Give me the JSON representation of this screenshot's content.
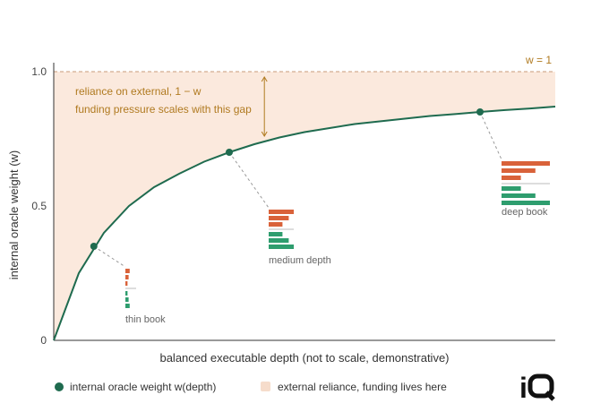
{
  "chart_data": {
    "type": "area",
    "xlabel": "balanced executable depth (not to scale, demonstrative)",
    "ylabel": "internal oracle weight (w)",
    "ylim": [
      0,
      1
    ],
    "xlim": [
      0,
      1
    ],
    "yticks": [
      {
        "value": 0,
        "label": "0"
      },
      {
        "value": 0.5,
        "label": "0.5"
      },
      {
        "value": 1,
        "label": "1.0"
      }
    ],
    "series": [
      {
        "name": "internal oracle weight w(depth)",
        "color": "#1f6b4f",
        "x": [
          0,
          0.05,
          0.1,
          0.15,
          0.2,
          0.25,
          0.3,
          0.35,
          0.4,
          0.45,
          0.5,
          0.55,
          0.6,
          0.65,
          0.7,
          0.75,
          0.8,
          0.85,
          0.9,
          0.95,
          1.0
        ],
        "y": [
          0,
          0.25,
          0.4,
          0.5,
          0.57,
          0.62,
          0.665,
          0.7,
          0.73,
          0.755,
          0.775,
          0.79,
          0.805,
          0.815,
          0.825,
          0.835,
          0.842,
          0.85,
          0.857,
          0.863,
          0.87
        ]
      }
    ],
    "reference_line": {
      "y": 1,
      "label": "w = 1",
      "style": "dashed",
      "color": "#c89a7a"
    },
    "shaded_region": {
      "name": "external reliance, funding lives here",
      "from": "curve",
      "to": 1,
      "color": "#fbe9dd"
    },
    "gap_annotation": {
      "x": 0.42,
      "lines": [
        "reliance on external, 1 − w",
        "funding pressure scales with this gap"
      ],
      "color": "#b07a20"
    },
    "markers": [
      {
        "x": 0.08,
        "y": 0.35,
        "label": "thin book",
        "ask_bars": [
          0.4,
          0.3,
          0.2
        ],
        "bid_bars": [
          0.2,
          0.3,
          0.4
        ]
      },
      {
        "x": 0.35,
        "y": 0.7,
        "label": "medium depth",
        "ask_bars": [
          1.0,
          0.8,
          0.55
        ],
        "bid_bars": [
          0.55,
          0.8,
          1.0
        ]
      },
      {
        "x": 0.85,
        "y": 0.85,
        "label": "deep book",
        "ask_bars": [
          1.0,
          0.7,
          0.4
        ],
        "bid_bars": [
          0.4,
          0.7,
          1.0
        ]
      }
    ],
    "legend": [
      {
        "label": "internal oracle weight w(depth)",
        "color": "#1f6b4f",
        "shape": "dot"
      },
      {
        "label": "external reliance, funding lives here",
        "color": "#f6dccb",
        "shape": "square"
      }
    ],
    "legend_placement": "bottom-left",
    "grid": false,
    "colors": {
      "curve": "#1f6b4f",
      "ask": "#d9623a",
      "bid": "#2e9d6e",
      "shade": "#fbe9dd",
      "axis": "#555555"
    }
  },
  "logo": {
    "text": "iO"
  }
}
